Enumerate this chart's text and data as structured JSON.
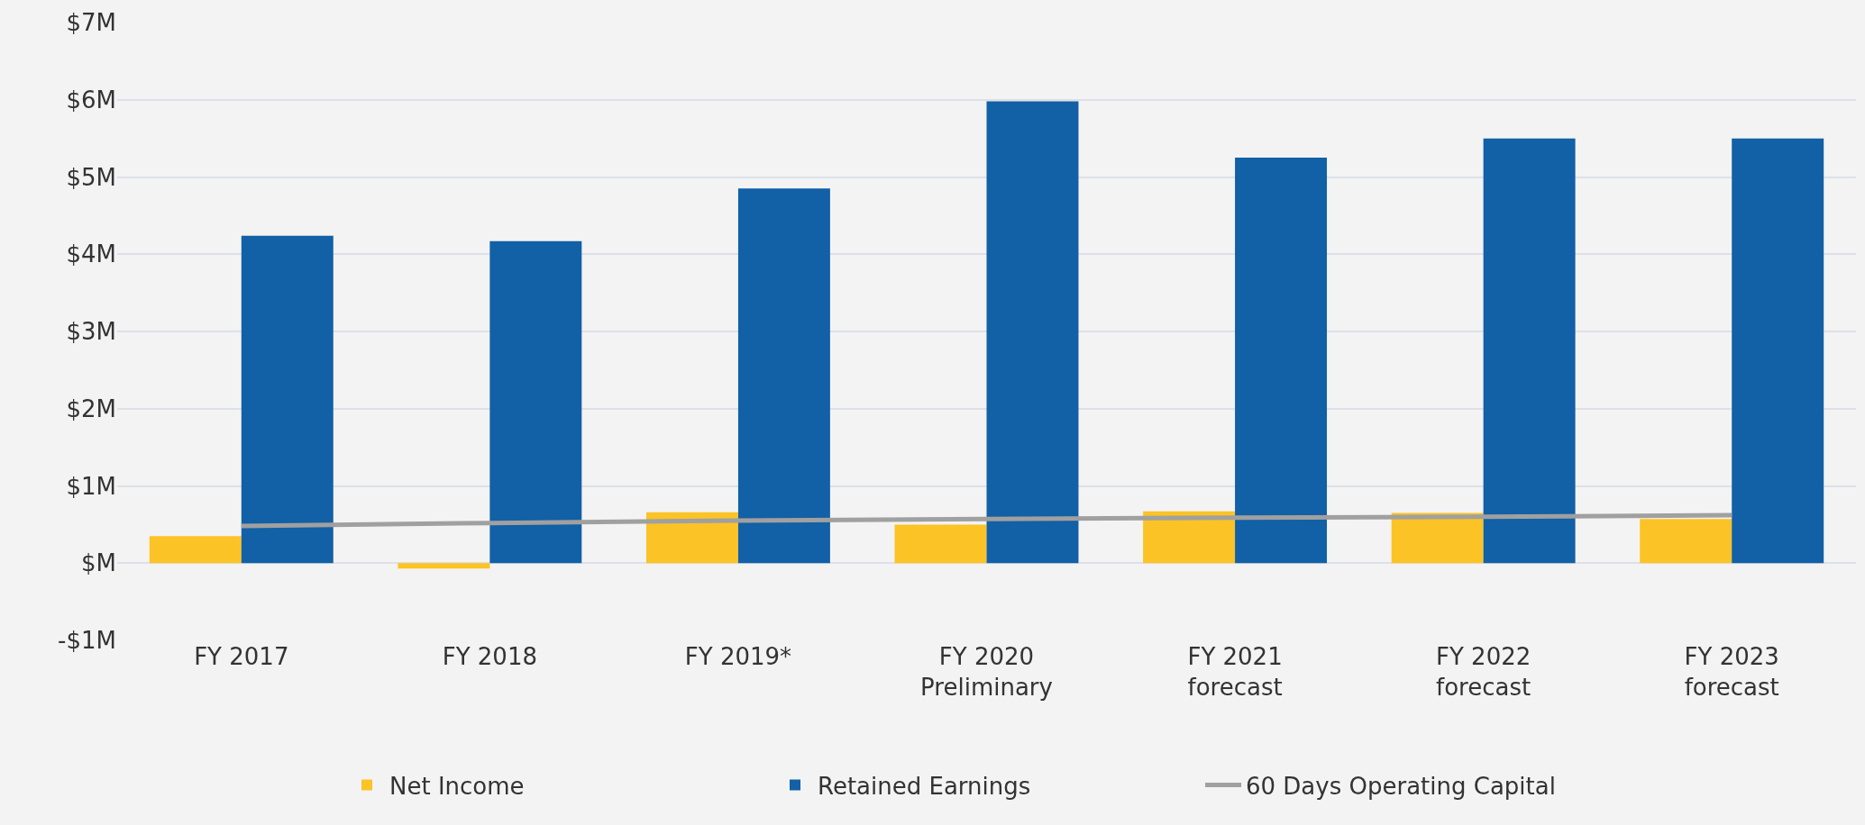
{
  "chart_data": {
    "type": "bar",
    "categories": [
      "FY 2017",
      "FY 2018",
      "FY 2019*",
      "FY 2020\nPreliminary",
      "FY 2021\nforecast",
      "FY 2022\nforecast",
      "FY 2023\nforecast"
    ],
    "series": [
      {
        "name": "Net Income",
        "color": "#fbc325",
        "values": [
          0.35,
          -0.07,
          0.66,
          0.5,
          0.67,
          0.65,
          0.57
        ]
      },
      {
        "name": "Retained Earnings",
        "color": "#1260a6",
        "values": [
          4.24,
          4.17,
          4.85,
          5.98,
          5.25,
          5.5,
          5.5
        ]
      },
      {
        "name": "60 Days Operating Capital",
        "type": "line",
        "color": "#a0a0a0",
        "marker": "none",
        "values": [
          0.48,
          0.52,
          0.55,
          0.57,
          0.59,
          0.6,
          0.62
        ]
      }
    ],
    "ylim": [
      -1,
      7
    ],
    "yticks": [
      {
        "value": -1,
        "label": "-$1M"
      },
      {
        "value": 0,
        "label": "$M"
      },
      {
        "value": 1,
        "label": "$1M"
      },
      {
        "value": 2,
        "label": "$2M"
      },
      {
        "value": 3,
        "label": "$3M"
      },
      {
        "value": 4,
        "label": "$4M"
      },
      {
        "value": 5,
        "label": "$5M"
      },
      {
        "value": 6,
        "label": "$6M"
      },
      {
        "value": 7,
        "label": "$7M"
      }
    ],
    "grid": "y",
    "legend": "bottom"
  }
}
